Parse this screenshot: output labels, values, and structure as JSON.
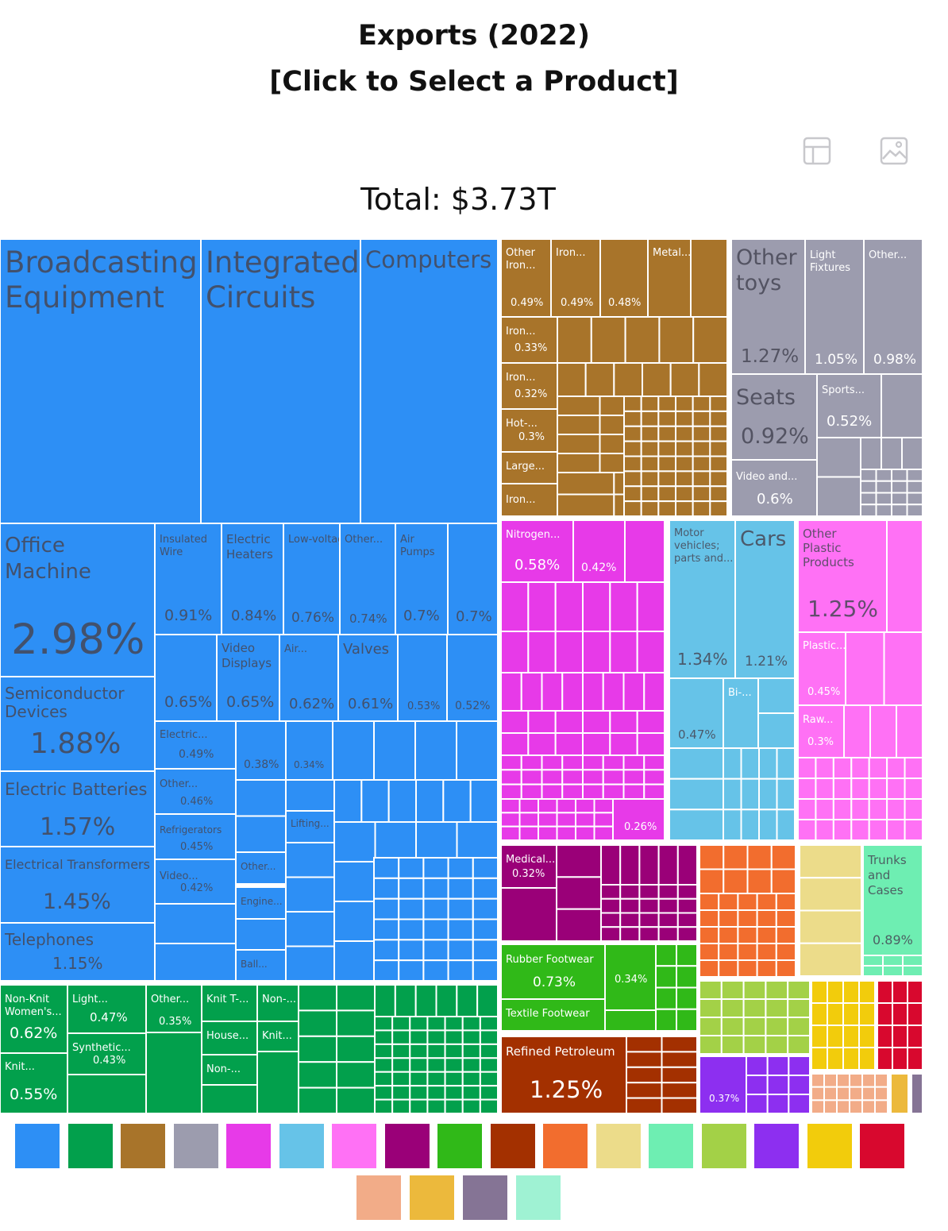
{
  "title": {
    "line1": "Exports (2022)",
    "line2": "[Click to Select a Product]"
  },
  "toolbar": [
    {
      "icon": "table-icon"
    },
    {
      "icon": "image-icon"
    }
  ],
  "total_label": "Total: $3.73T",
  "colors": {
    "electronics": "#2d8ff5",
    "textiles": "#02a04c",
    "metals": "#a8742a",
    "misc": "#9c9cae",
    "chemicals": "#e73ae8",
    "transport": "#66c3e8",
    "plastics": "#ff71f5",
    "instruments": "#9a0078",
    "footwear": "#30b918",
    "minerals": "#a33000",
    "machines_orange": "#f26d2e",
    "stone": "#ecdc8a",
    "animal_hides": "#6eeeb2",
    "vegetables": "#a3d147",
    "paper": "#8d2ff0",
    "foodstuffs": "#f2cc0c",
    "animals": "#d8082e"
  },
  "chart_data": {
    "type": "treemap",
    "title": "Exports (2022)",
    "subtitle": "[Click to Select a Product]",
    "total": "Total: $3.73T",
    "sections": [
      {
        "color_key": "electronics",
        "items": [
          {
            "label": "Broadcasting Equipment",
            "share": 7.3
          },
          {
            "label": "Integrated Circuits",
            "share": 5.69
          },
          {
            "label": "Computers",
            "share": 4.85
          },
          {
            "label": "Office Machine Parts",
            "share": 2.98
          },
          {
            "label": "Semiconductor Devices",
            "share": 1.88
          },
          {
            "label": "Electric Batteries",
            "share": 1.57
          },
          {
            "label": "Electrical Transformers",
            "share": 1.45
          },
          {
            "label": "Telephones",
            "share": 1.15
          },
          {
            "label": "Insulated Wire",
            "share": 0.91
          },
          {
            "label": "Electric Heaters",
            "share": 0.84
          },
          {
            "label": "Low-voltage...",
            "share": 0.76
          },
          {
            "label": "Other...",
            "share": 0.74
          },
          {
            "label": "Air Pumps",
            "share": 0.7
          },
          {
            "label": "",
            "share": 0.7
          },
          {
            "label": "",
            "share": 0.65
          },
          {
            "label": "Video Displays",
            "share": 0.65
          },
          {
            "label": "Air...",
            "share": 0.62
          },
          {
            "label": "Valves",
            "share": 0.61
          },
          {
            "label": "",
            "share": 0.53
          },
          {
            "label": "",
            "share": 0.52
          },
          {
            "label": "Electric...",
            "share": 0.49
          },
          {
            "label": "Other...",
            "share": 0.46
          },
          {
            "label": "Refrigerators",
            "share": 0.45
          },
          {
            "label": "Video...",
            "share": 0.42
          },
          {
            "label": "",
            "share": 0.38
          },
          {
            "label": "",
            "share": 0.34
          },
          {
            "label": "Lifting...",
            "share": null
          },
          {
            "label": "Other...",
            "share": null
          },
          {
            "label": "Engine...",
            "share": null
          },
          {
            "label": "Ball...",
            "share": null
          }
        ]
      },
      {
        "color_key": "metals",
        "items": [
          {
            "label": "Other Iron...",
            "share": 0.49
          },
          {
            "label": "Iron...",
            "share": 0.49
          },
          {
            "label": "",
            "share": 0.48
          },
          {
            "label": "Metal...",
            "share": null
          },
          {
            "label": "Iron...",
            "share": 0.33
          },
          {
            "label": "Iron...",
            "share": 0.32
          },
          {
            "label": "Hot-...",
            "share": 0.3
          },
          {
            "label": "Large...",
            "share": null
          },
          {
            "label": "Iron...",
            "share": null
          }
        ]
      },
      {
        "color_key": "misc",
        "items": [
          {
            "label": "Other toys",
            "share": 1.27
          },
          {
            "label": "Light Fixtures",
            "share": 1.05
          },
          {
            "label": "Other...",
            "share": 0.98
          },
          {
            "label": "Seats",
            "share": 0.92
          },
          {
            "label": "Sports...",
            "share": 0.52
          },
          {
            "label": "Video and...",
            "share": 0.6
          }
        ]
      },
      {
        "color_key": "chemicals",
        "items": [
          {
            "label": "Nitrogen...",
            "share": 0.58
          },
          {
            "label": "",
            "share": 0.42
          },
          {
            "label": "",
            "share": 0.26
          }
        ]
      },
      {
        "color_key": "transport",
        "items": [
          {
            "label": "Motor vehicles; parts and...",
            "share": 1.34
          },
          {
            "label": "Cars",
            "share": 1.21
          },
          {
            "label": "",
            "share": 0.47
          },
          {
            "label": "Bi-...",
            "share": null
          }
        ]
      },
      {
        "color_key": "plastics",
        "items": [
          {
            "label": "Other Plastic Products",
            "share": 1.25
          },
          {
            "label": "Plastic...",
            "share": 0.45
          },
          {
            "label": "Raw...",
            "share": 0.3
          }
        ]
      },
      {
        "color_key": "textiles",
        "items": [
          {
            "label": "Non-Knit Women's...",
            "share": 0.62
          },
          {
            "label": "Knit...",
            "share": 0.55
          },
          {
            "label": "Light...",
            "share": 0.47
          },
          {
            "label": "Synthetic...",
            "share": 0.43
          },
          {
            "label": "Other...",
            "share": 0.35
          },
          {
            "label": "Knit T-...",
            "share": null
          },
          {
            "label": "House...",
            "share": null
          },
          {
            "label": "Non-...",
            "share": null
          },
          {
            "label": "Non-...",
            "share": null
          },
          {
            "label": "Knit...",
            "share": null
          }
        ]
      },
      {
        "color_key": "instruments",
        "items": [
          {
            "label": "Medical...",
            "share": 0.32
          }
        ]
      },
      {
        "color_key": "footwear",
        "items": [
          {
            "label": "Rubber Footwear",
            "share": 0.73
          },
          {
            "label": "",
            "share": 0.34
          },
          {
            "label": "Textile Footwear",
            "share": null
          }
        ]
      },
      {
        "color_key": "minerals",
        "items": [
          {
            "label": "Refined Petroleum",
            "share": 1.25
          }
        ]
      },
      {
        "color_key": "animal_hides",
        "items": [
          {
            "label": "Trunks and Cases",
            "share": 0.89
          }
        ]
      },
      {
        "color_key": "paper",
        "items": [
          {
            "label": "",
            "share": 0.37
          }
        ]
      }
    ],
    "legend_colors": [
      "#2d8ff5",
      "#02a04c",
      "#a8742a",
      "#9c9cae",
      "#e73ae8",
      "#66c3e8",
      "#ff71f5",
      "#9a0078",
      "#30b918",
      "#a33000",
      "#f26d2e",
      "#ecdc8a",
      "#6eeeb2",
      "#a3d147",
      "#8d2ff0",
      "#f2cc0c",
      "#d8082e",
      "#f2ac88",
      "#ecb93c",
      "#857495",
      "#9ff2d3"
    ]
  }
}
